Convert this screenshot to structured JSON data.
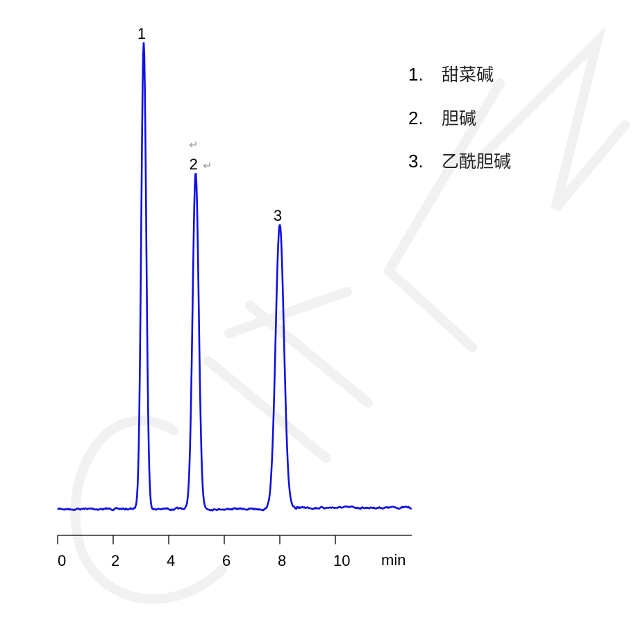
{
  "chart_data": {
    "type": "line",
    "title": "",
    "xlabel": "min",
    "ylabel": "",
    "xlim": [
      0,
      12.75
    ],
    "x_ticks": [
      0,
      2,
      4,
      6,
      8,
      10
    ],
    "x_tick_labels": [
      "0",
      "2",
      "4",
      "6",
      "8",
      "10"
    ],
    "y_axis_shown": false,
    "grid": false,
    "line_color": "#1010e0",
    "peaks": [
      {
        "label": "1",
        "retention_time": 3.1,
        "relative_height": 100,
        "width_sigma": 0.09
      },
      {
        "label": "2",
        "retention_time": 4.97,
        "relative_height": 72,
        "width_sigma": 0.11
      },
      {
        "label": "3",
        "retention_time": 8.0,
        "relative_height": 61,
        "width_sigma": 0.15
      }
    ],
    "legend": {
      "placement": "top-right",
      "entries": [
        {
          "num": "1.",
          "name": "甜菜碱"
        },
        {
          "num": "2.",
          "name": "胆碱"
        },
        {
          "num": "3.",
          "name": "乙酰胆碱"
        }
      ]
    },
    "paragraph_mark": "↵",
    "watermark": "CHEM"
  }
}
